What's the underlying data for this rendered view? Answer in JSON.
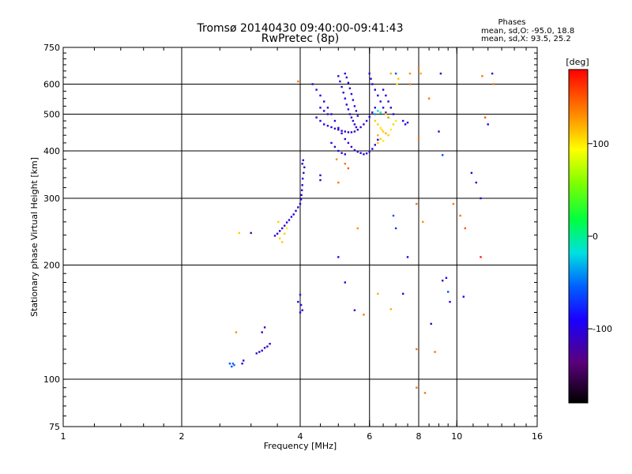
{
  "chart_data": {
    "type": "scatter",
    "title": "Tromsø 20140430 09:40:00-09:41:43",
    "subtitle": "RwPretec (8p)",
    "stats": {
      "heading": "Phases",
      "line1": "mean, sd,O: -95.0, 18.8",
      "line2": "mean, sd,X:  93.5, 25.2"
    },
    "xlabel": "Frequency [MHz]",
    "ylabel": "Stationary phase Virtual Height [km]",
    "x_scale": "log",
    "y_scale": "log",
    "xlim": [
      1,
      16
    ],
    "ylim": [
      75,
      750
    ],
    "x_ticks": [
      1,
      2,
      4,
      6,
      8,
      10,
      16
    ],
    "x_tick_labels": [
      "1",
      "2",
      "4",
      "6",
      "8",
      "10",
      "16"
    ],
    "x_gridlines": [
      2,
      4,
      6,
      8,
      10
    ],
    "y_ticks": [
      75,
      100,
      200,
      300,
      400,
      500,
      600,
      750
    ],
    "y_tick_labels": [
      "75",
      "100",
      "200",
      "300",
      "400",
      "500",
      "600",
      "750"
    ],
    "y_gridlines": [
      100,
      200,
      300,
      400,
      500,
      600
    ],
    "grid": true,
    "colorbar": {
      "label": "[deg]",
      "min": -180,
      "max": 180,
      "ticks": [
        -100,
        0,
        100
      ],
      "tick_labels": [
        "-100",
        "0",
        "100"
      ],
      "colormap": "black-purple-blue-cyan-green-yellow-orange-red"
    },
    "points": [
      [
        2.65,
        110,
        -60
      ],
      [
        2.7,
        110,
        -55
      ],
      [
        2.68,
        108,
        -60
      ],
      [
        2.72,
        109,
        -50
      ],
      [
        2.85,
        110,
        -100
      ],
      [
        2.87,
        112,
        -110
      ],
      [
        3.1,
        117,
        -110
      ],
      [
        3.15,
        118,
        -105
      ],
      [
        3.2,
        119,
        -100
      ],
      [
        3.25,
        121,
        -110
      ],
      [
        3.3,
        122,
        -105
      ],
      [
        3.35,
        124,
        -115
      ],
      [
        3.2,
        133,
        -110
      ],
      [
        3.25,
        137,
        -120
      ],
      [
        3.45,
        239,
        -100
      ],
      [
        3.5,
        242,
        -100
      ],
      [
        3.55,
        246,
        -105
      ],
      [
        3.6,
        250,
        -100
      ],
      [
        3.65,
        254,
        -110
      ],
      [
        3.7,
        259,
        -100
      ],
      [
        3.75,
        263,
        -105
      ],
      [
        3.8,
        268,
        -100
      ],
      [
        3.85,
        272,
        -110
      ],
      [
        3.9,
        278,
        -100
      ],
      [
        3.95,
        284,
        -105
      ],
      [
        4.0,
        290,
        -100
      ],
      [
        4.02,
        298,
        -100
      ],
      [
        4.03,
        306,
        -110
      ],
      [
        4.04,
        315,
        -100
      ],
      [
        4.05,
        325,
        -105
      ],
      [
        4.06,
        338,
        -100
      ],
      [
        4.08,
        350,
        -110
      ],
      [
        4.1,
        362,
        -100
      ],
      [
        4.05,
        370,
        -105
      ],
      [
        4.07,
        378,
        -100
      ],
      [
        3.55,
        235,
        110
      ],
      [
        3.6,
        230,
        110
      ],
      [
        3.65,
        242,
        110
      ],
      [
        3.7,
        250,
        100
      ],
      [
        3.52,
        260,
        110
      ],
      [
        2.8,
        243,
        110
      ],
      [
        3.0,
        243,
        -120
      ],
      [
        2.75,
        133,
        130
      ],
      [
        3.95,
        610,
        140
      ],
      [
        4.0,
        150,
        -100
      ],
      [
        4.05,
        152,
        -105
      ],
      [
        4.02,
        157,
        -100
      ],
      [
        4.0,
        167,
        -80
      ],
      [
        3.95,
        160,
        -100
      ],
      [
        4.3,
        600,
        -100
      ],
      [
        4.4,
        580,
        -105
      ],
      [
        4.5,
        560,
        -100
      ],
      [
        4.6,
        540,
        -110
      ],
      [
        4.7,
        520,
        -100
      ],
      [
        4.8,
        500,
        -105
      ],
      [
        4.9,
        480,
        -100
      ],
      [
        5.0,
        460,
        -110
      ],
      [
        5.1,
        445,
        -100
      ],
      [
        5.2,
        430,
        -105
      ],
      [
        5.3,
        420,
        -100
      ],
      [
        5.4,
        410,
        -110
      ],
      [
        5.5,
        402,
        -100
      ],
      [
        5.6,
        398,
        -105
      ],
      [
        5.7,
        395,
        -100
      ],
      [
        5.8,
        392,
        -110
      ],
      [
        5.9,
        394,
        -100
      ],
      [
        6.0,
        398,
        -105
      ],
      [
        6.1,
        405,
        -100
      ],
      [
        6.2,
        415,
        -110
      ],
      [
        6.3,
        428,
        -100
      ],
      [
        4.6,
        470,
        -100
      ],
      [
        4.7,
        466,
        -105
      ],
      [
        4.8,
        462,
        -100
      ],
      [
        4.9,
        458,
        -110
      ],
      [
        5.0,
        455,
        -100
      ],
      [
        5.1,
        452,
        -105
      ],
      [
        5.2,
        450,
        -100
      ],
      [
        5.3,
        448,
        -110
      ],
      [
        5.4,
        448,
        -100
      ],
      [
        5.5,
        450,
        -105
      ],
      [
        5.6,
        455,
        -100
      ],
      [
        5.7,
        462,
        -110
      ],
      [
        5.8,
        470,
        -100
      ],
      [
        5.9,
        480,
        -105
      ],
      [
        6.0,
        492,
        -100
      ],
      [
        6.1,
        505,
        -110
      ],
      [
        6.2,
        520,
        -100
      ],
      [
        5.0,
        630,
        -100
      ],
      [
        5.05,
        610,
        -105
      ],
      [
        5.1,
        590,
        -100
      ],
      [
        5.15,
        570,
        -110
      ],
      [
        5.2,
        550,
        -100
      ],
      [
        5.25,
        530,
        -105
      ],
      [
        5.3,
        515,
        -100
      ],
      [
        5.35,
        500,
        -110
      ],
      [
        5.4,
        490,
        -100
      ],
      [
        5.45,
        480,
        -105
      ],
      [
        5.5,
        470,
        -100
      ],
      [
        5.55,
        462,
        -110
      ],
      [
        5.2,
        640,
        -100
      ],
      [
        5.25,
        625,
        -105
      ],
      [
        5.3,
        605,
        -100
      ],
      [
        5.35,
        585,
        -110
      ],
      [
        5.4,
        565,
        -100
      ],
      [
        5.45,
        545,
        -105
      ],
      [
        5.5,
        525,
        -100
      ],
      [
        5.55,
        510,
        -110
      ],
      [
        5.6,
        495,
        -100
      ],
      [
        6.0,
        640,
        -100
      ],
      [
        6.05,
        620,
        -105
      ],
      [
        6.1,
        600,
        -100
      ],
      [
        6.2,
        580,
        -110
      ],
      [
        6.3,
        560,
        -100
      ],
      [
        6.4,
        540,
        -105
      ],
      [
        6.5,
        520,
        -100
      ],
      [
        6.6,
        505,
        -110
      ],
      [
        6.7,
        490,
        -100
      ],
      [
        6.5,
        580,
        -100
      ],
      [
        6.6,
        560,
        -105
      ],
      [
        6.7,
        540,
        -100
      ],
      [
        6.8,
        520,
        -110
      ],
      [
        6.9,
        500,
        -100
      ],
      [
        4.8,
        420,
        -100
      ],
      [
        4.9,
        410,
        -105
      ],
      [
        5.0,
        400,
        -100
      ],
      [
        5.1,
        395,
        -110
      ],
      [
        5.2,
        392,
        -100
      ],
      [
        4.5,
        520,
        -100
      ],
      [
        4.6,
        510,
        -105
      ],
      [
        4.7,
        500,
        -100
      ],
      [
        4.4,
        490,
        -110
      ],
      [
        4.5,
        480,
        -100
      ],
      [
        6.3,
        470,
        110
      ],
      [
        6.4,
        460,
        100
      ],
      [
        6.5,
        450,
        110
      ],
      [
        6.6,
        445,
        120
      ],
      [
        6.7,
        440,
        110
      ],
      [
        6.8,
        455,
        100
      ],
      [
        6.9,
        470,
        110
      ],
      [
        7.0,
        480,
        100
      ],
      [
        6.3,
        440,
        120
      ],
      [
        6.4,
        430,
        110
      ],
      [
        6.5,
        425,
        100
      ],
      [
        6.6,
        500,
        110
      ],
      [
        6.7,
        490,
        120
      ],
      [
        6.2,
        480,
        110
      ],
      [
        6.3,
        420,
        115
      ],
      [
        6.45,
        455,
        105
      ],
      [
        6.2,
        500,
        -40
      ],
      [
        6.3,
        510,
        -20
      ],
      [
        6.4,
        505,
        -10
      ],
      [
        7.0,
        640,
        -60
      ],
      [
        7.1,
        620,
        110
      ],
      [
        7.05,
        600,
        100
      ],
      [
        6.8,
        640,
        120
      ],
      [
        7.3,
        480,
        -100
      ],
      [
        7.4,
        470,
        -105
      ],
      [
        7.5,
        475,
        -100
      ],
      [
        7.6,
        640,
        130
      ],
      [
        7.6,
        600,
        140
      ],
      [
        8.0,
        660,
        140
      ],
      [
        8.1,
        640,
        120
      ],
      [
        8.0,
        430,
        140
      ],
      [
        8.5,
        550,
        140
      ],
      [
        9.1,
        640,
        -110
      ],
      [
        9.0,
        450,
        -100
      ],
      [
        9.2,
        390,
        -60
      ],
      [
        9.8,
        290,
        140
      ],
      [
        10.2,
        270,
        140
      ],
      [
        10.5,
        250,
        150
      ],
      [
        10.9,
        350,
        -100
      ],
      [
        11.2,
        330,
        -105
      ],
      [
        11.5,
        300,
        -100
      ],
      [
        12.0,
        470,
        -100
      ],
      [
        12.3,
        640,
        -100
      ],
      [
        11.8,
        490,
        150
      ],
      [
        11.6,
        630,
        140
      ],
      [
        12.4,
        600,
        140
      ],
      [
        11.5,
        210,
        170
      ],
      [
        4.5,
        335,
        -110
      ],
      [
        5.0,
        210,
        -100
      ],
      [
        5.2,
        180,
        -100
      ],
      [
        5.5,
        152,
        -105
      ],
      [
        5.8,
        148,
        140
      ],
      [
        5.6,
        250,
        130
      ],
      [
        6.3,
        168,
        120
      ],
      [
        6.8,
        153,
        120
      ],
      [
        7.0,
        250,
        -70
      ],
      [
        6.9,
        270,
        -60
      ],
      [
        7.3,
        168,
        -100
      ],
      [
        7.5,
        210,
        -100
      ],
      [
        7.9,
        290,
        140
      ],
      [
        7.9,
        120,
        140
      ],
      [
        8.2,
        260,
        130
      ],
      [
        8.6,
        140,
        -110
      ],
      [
        9.4,
        185,
        -100
      ],
      [
        9.2,
        182,
        -100
      ],
      [
        9.5,
        170,
        -60
      ],
      [
        9.6,
        160,
        -100
      ],
      [
        10.4,
        165,
        -100
      ],
      [
        7.9,
        95,
        140
      ],
      [
        8.3,
        92,
        140
      ],
      [
        8.8,
        118,
        140
      ],
      [
        5.2,
        370,
        140
      ],
      [
        5.3,
        360,
        150
      ],
      [
        4.95,
        380,
        130
      ],
      [
        5.0,
        330,
        140
      ],
      [
        4.5,
        345,
        -110
      ]
    ]
  }
}
